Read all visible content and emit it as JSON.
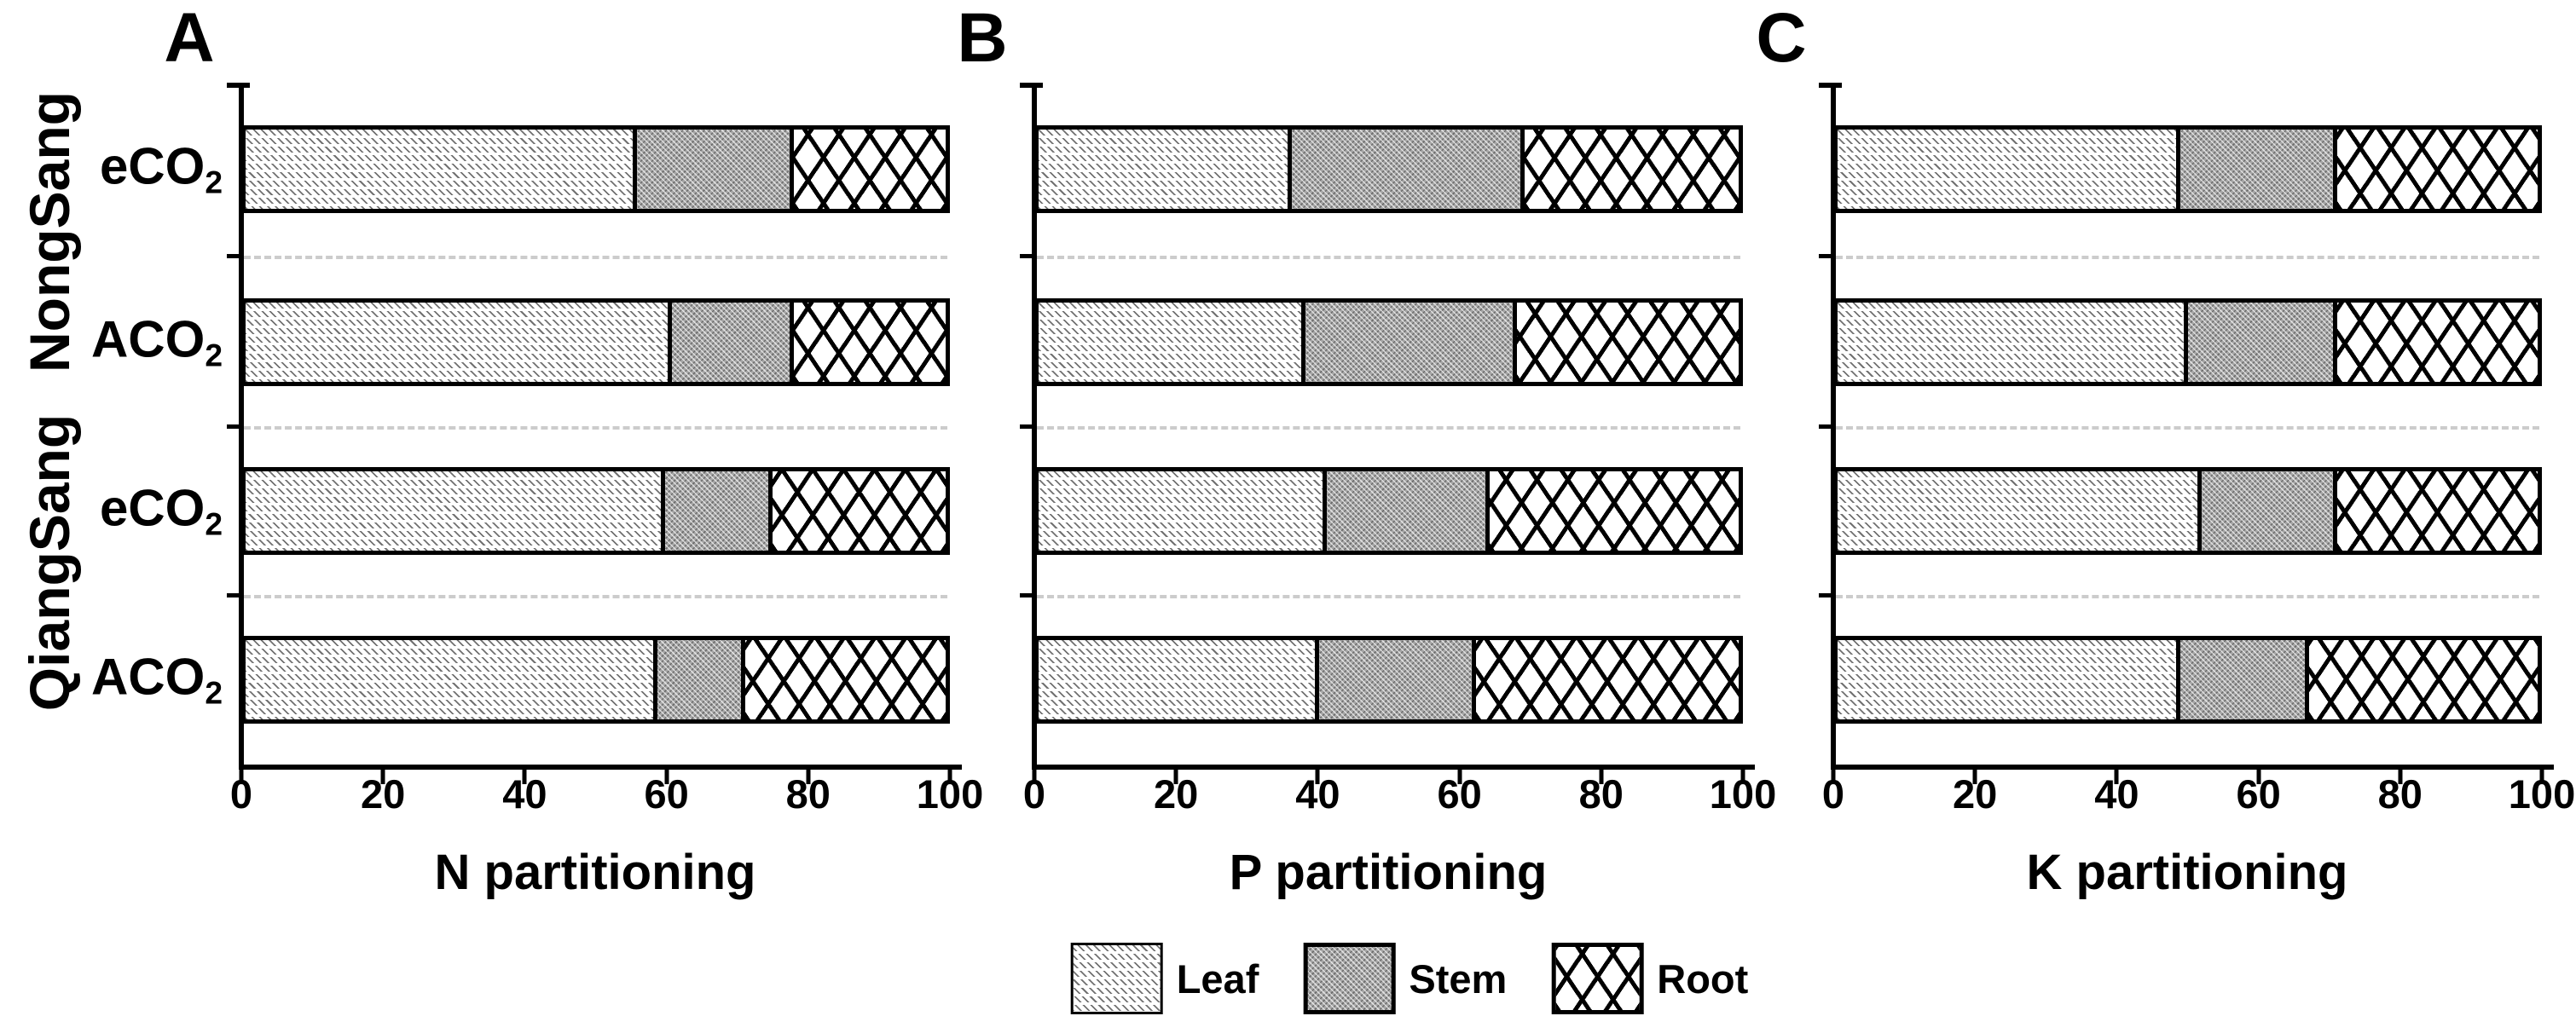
{
  "figure": {
    "y_group_labels": [
      "NongSang",
      "QiangSang"
    ],
    "row_labels": [
      {
        "main": "eCO",
        "sub": "2"
      },
      {
        "main": "ACO",
        "sub": "2"
      },
      {
        "main": "eCO",
        "sub": "2"
      },
      {
        "main": "ACO",
        "sub": "2"
      }
    ],
    "legend": [
      {
        "label": "Leaf",
        "pattern": "leaf-hatch"
      },
      {
        "label": "Stem",
        "pattern": "stem-weave"
      },
      {
        "label": "Root",
        "pattern": "root-crosshatch"
      }
    ],
    "colors": {
      "foreground": "#000000",
      "background": "#ffffff",
      "stem_fill": "#a6a6a6",
      "leaf_hatch_line": "#717171",
      "gridline": "#cccccc"
    }
  },
  "chart_data": [
    {
      "type": "bar",
      "orientation": "horizontal",
      "stacked": true,
      "panel_letter": "A",
      "xlabel": "N partitioning",
      "xlim": [
        0,
        100
      ],
      "x_ticks": [
        0,
        20,
        40,
        60,
        80,
        100
      ],
      "grid": "dashed horizontal between rows",
      "legend_position": "bottom center of figure",
      "categories": [
        "NongSang eCO₂",
        "NongSang ACO₂",
        "QiangSang eCO₂",
        "QiangSang ACO₂"
      ],
      "series": [
        {
          "name": "Leaf",
          "values": [
            56,
            61,
            60,
            59
          ]
        },
        {
          "name": "Stem",
          "values": [
            22,
            17,
            15,
            12
          ]
        },
        {
          "name": "Root",
          "values": [
            22,
            22,
            25,
            29
          ]
        }
      ]
    },
    {
      "type": "bar",
      "orientation": "horizontal",
      "stacked": true,
      "panel_letter": "B",
      "xlabel": "P partitioning",
      "xlim": [
        0,
        100
      ],
      "x_ticks": [
        0,
        20,
        40,
        60,
        80,
        100
      ],
      "grid": "dashed horizontal between rows",
      "categories": [
        "NongSang eCO₂",
        "NongSang ACO₂",
        "QiangSang eCO₂",
        "QiangSang ACO₂"
      ],
      "series": [
        {
          "name": "Leaf",
          "values": [
            36,
            38,
            41,
            40
          ]
        },
        {
          "name": "Stem",
          "values": [
            33,
            30,
            23,
            22
          ]
        },
        {
          "name": "Root",
          "values": [
            31,
            32,
            36,
            38
          ]
        }
      ]
    },
    {
      "type": "bar",
      "orientation": "horizontal",
      "stacked": true,
      "panel_letter": "C",
      "xlabel": "K partitioning",
      "xlim": [
        0,
        100
      ],
      "x_ticks": [
        0,
        20,
        40,
        60,
        80,
        100
      ],
      "grid": "dashed horizontal between rows",
      "categories": [
        "NongSang eCO₂",
        "NongSang ACO₂",
        "QiangSang eCO₂",
        "QiangSang ACO₂"
      ],
      "series": [
        {
          "name": "Leaf",
          "values": [
            49,
            50,
            52,
            49
          ]
        },
        {
          "name": "Stem",
          "values": [
            22,
            21,
            19,
            18
          ]
        },
        {
          "name": "Root",
          "values": [
            29,
            29,
            29,
            33
          ]
        }
      ]
    }
  ]
}
